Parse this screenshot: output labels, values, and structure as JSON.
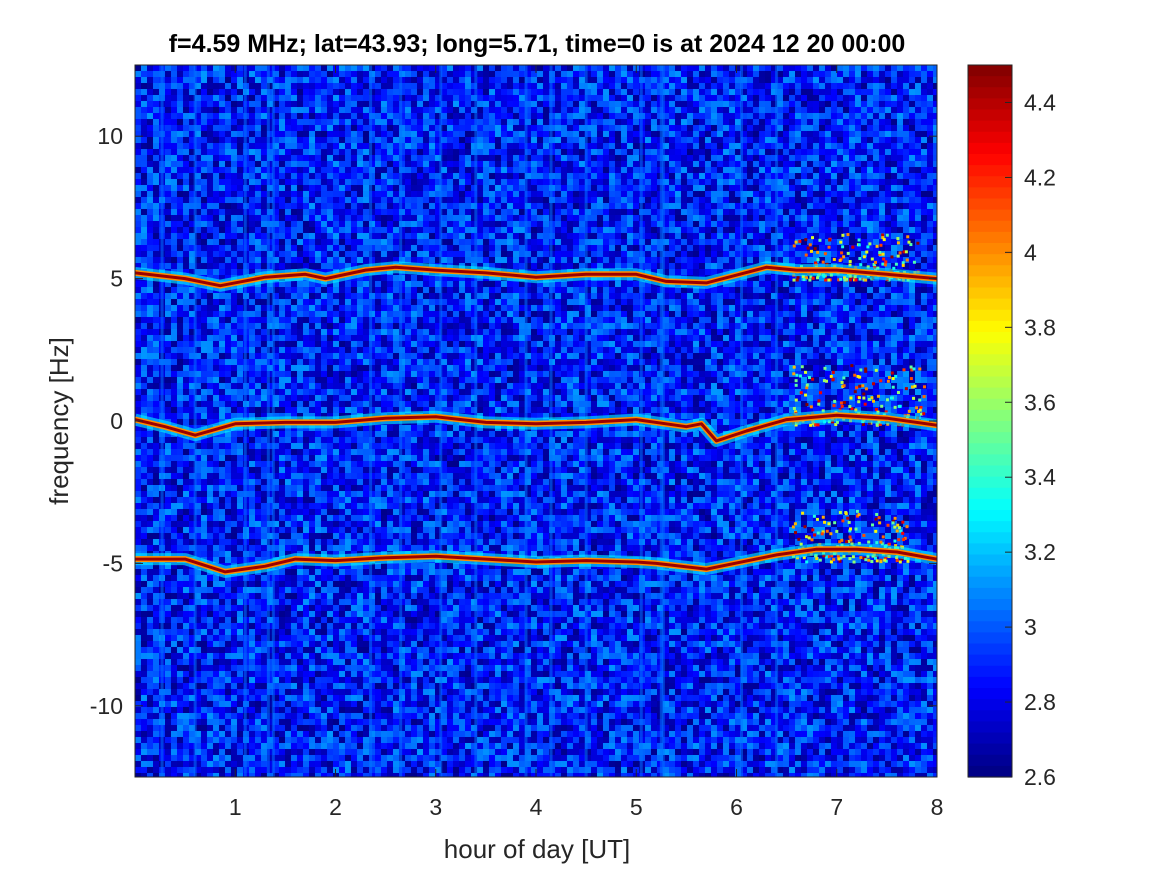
{
  "chart_data": {
    "type": "heatmap",
    "title": "f=4.59 MHz;  lat=43.93; long=5.71, time=0 is at 2024 12 20 00:00",
    "xlabel": "hour of day [UT]",
    "ylabel": "frequency [Hz]",
    "xlim": [
      0,
      8
    ],
    "ylim": [
      -12.5,
      12.5
    ],
    "x_ticks": [
      1,
      2,
      3,
      4,
      5,
      6,
      7,
      8
    ],
    "x_tick_labels": [
      "1",
      "2",
      "3",
      "4",
      "5",
      "6",
      "7",
      "8"
    ],
    "y_ticks": [
      10,
      5,
      0,
      -5,
      -10
    ],
    "y_tick_labels": [
      "10",
      "5",
      "0",
      "-5",
      "-10"
    ],
    "colorbar": {
      "colormap": "jet",
      "range": [
        2.6,
        4.5
      ],
      "ticks": [
        4.4,
        4.2,
        4,
        3.8,
        3.6,
        3.4,
        3.2,
        3,
        2.8,
        2.6
      ],
      "tick_labels": [
        "4.4",
        "4.2",
        "4",
        "3.8",
        "3.6",
        "3.4",
        "3.2",
        "3",
        "2.8",
        "2.6"
      ]
    },
    "background_level": 2.9,
    "traces": [
      {
        "name": "0 Hz",
        "points": [
          [
            0.0,
            0.05
          ],
          [
            0.3,
            -0.2
          ],
          [
            0.6,
            -0.5
          ],
          [
            1.0,
            -0.1
          ],
          [
            1.5,
            -0.05
          ],
          [
            2.0,
            -0.05
          ],
          [
            2.5,
            0.1
          ],
          [
            3.0,
            0.15
          ],
          [
            3.5,
            -0.05
          ],
          [
            4.0,
            -0.1
          ],
          [
            4.5,
            -0.05
          ],
          [
            5.0,
            0.05
          ],
          [
            5.5,
            -0.2
          ],
          [
            5.65,
            -0.1
          ],
          [
            5.8,
            -0.7
          ],
          [
            6.1,
            -0.35
          ],
          [
            6.5,
            0.05
          ],
          [
            7.0,
            0.2
          ],
          [
            7.5,
            0.1
          ],
          [
            8.0,
            -0.15
          ]
        ]
      },
      {
        "name": "+5 Hz",
        "points": [
          [
            0.0,
            5.2
          ],
          [
            0.5,
            5.0
          ],
          [
            0.85,
            4.75
          ],
          [
            1.3,
            5.05
          ],
          [
            1.7,
            5.15
          ],
          [
            1.9,
            5.0
          ],
          [
            2.3,
            5.3
          ],
          [
            2.6,
            5.4
          ],
          [
            3.0,
            5.3
          ],
          [
            3.5,
            5.2
          ],
          [
            4.0,
            5.05
          ],
          [
            4.5,
            5.15
          ],
          [
            5.0,
            5.15
          ],
          [
            5.3,
            4.9
          ],
          [
            5.7,
            4.85
          ],
          [
            6.3,
            5.4
          ],
          [
            6.6,
            5.3
          ],
          [
            7.0,
            5.3
          ],
          [
            7.5,
            5.15
          ],
          [
            8.0,
            5.0
          ]
        ]
      },
      {
        "name": "-5 Hz",
        "points": [
          [
            0.0,
            -4.85
          ],
          [
            0.5,
            -4.85
          ],
          [
            0.9,
            -5.3
          ],
          [
            1.3,
            -5.1
          ],
          [
            1.6,
            -4.85
          ],
          [
            2.0,
            -4.9
          ],
          [
            2.5,
            -4.8
          ],
          [
            3.0,
            -4.75
          ],
          [
            3.5,
            -4.85
          ],
          [
            4.0,
            -4.95
          ],
          [
            4.5,
            -4.9
          ],
          [
            5.0,
            -4.95
          ],
          [
            5.2,
            -5.0
          ],
          [
            5.7,
            -5.2
          ],
          [
            6.4,
            -4.7
          ],
          [
            6.8,
            -4.5
          ],
          [
            7.2,
            -4.5
          ],
          [
            7.6,
            -4.6
          ],
          [
            8.0,
            -4.85
          ]
        ]
      }
    ],
    "spread_regions": [
      {
        "x_range": [
          6.55,
          7.9
        ],
        "y_range": [
          -0.1,
          2.0
        ],
        "label": ""
      },
      {
        "x_range": [
          6.55,
          7.8
        ],
        "y_range": [
          5.0,
          6.6
        ],
        "label": ""
      },
      {
        "x_range": [
          6.55,
          7.7
        ],
        "y_range": [
          -4.9,
          -3.1
        ],
        "label": ""
      }
    ],
    "vertical_streaks_x": [
      0.27,
      0.6,
      1.1,
      1.33,
      1.38,
      2.35,
      2.65,
      3.05,
      3.4,
      3.9,
      4.15,
      4.5,
      5.05,
      5.25,
      5.27,
      6.05,
      6.4
    ]
  }
}
